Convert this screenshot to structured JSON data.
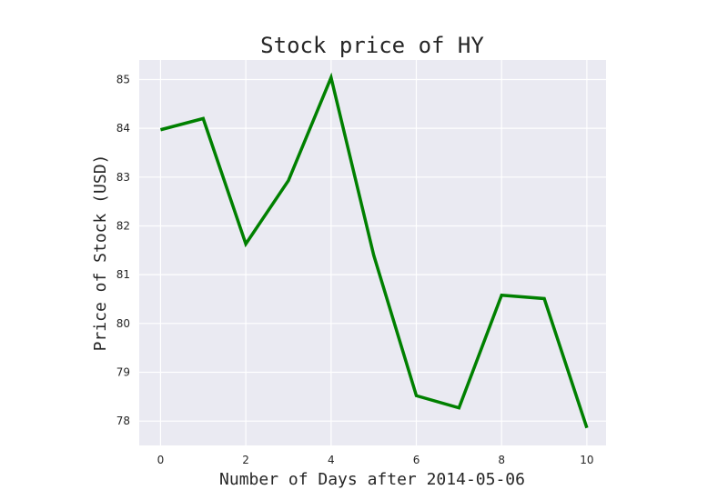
{
  "chart_data": {
    "type": "line",
    "title": "Stock price of HY",
    "xlabel": "Number of Days after 2014-05-06",
    "ylabel": "Price of Stock (USD)",
    "x": [
      0,
      1,
      2,
      3,
      4,
      5,
      6,
      7,
      8,
      9,
      10
    ],
    "series": [
      {
        "values": [
          83.97,
          84.2,
          81.63,
          82.93,
          85.04,
          81.4,
          78.52,
          78.27,
          80.58,
          80.51,
          77.86
        ]
      }
    ],
    "xlim": [
      -0.5,
      10.45
    ],
    "ylim": [
      77.5,
      85.4
    ],
    "x_ticks": [
      0,
      2,
      4,
      6,
      8,
      10
    ],
    "y_ticks": [
      78,
      79,
      80,
      81,
      82,
      83,
      84,
      85
    ],
    "grid": true,
    "colors": {
      "plot_background": "#eaeaf2",
      "grid": "#ffffff",
      "line": "#008000"
    }
  }
}
